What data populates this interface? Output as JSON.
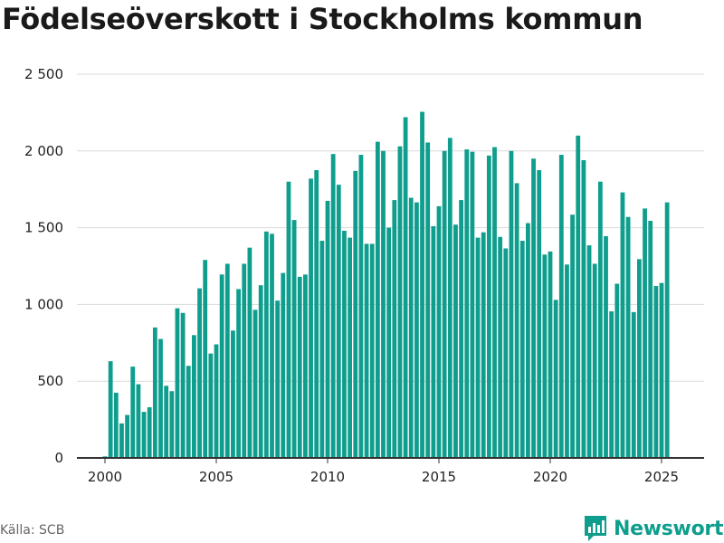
{
  "chart_data": {
    "type": "bar",
    "title": "Födelseöverskott i Stockholms kommun",
    "xlabel": "",
    "ylabel": "",
    "ylim": [
      0,
      2500
    ],
    "yticks": [
      "2 500",
      "2 000",
      "1 500",
      "1 000",
      "500",
      "0"
    ],
    "ytick_values": [
      2500,
      2000,
      1500,
      1000,
      500,
      0
    ],
    "xticks": [
      "2000",
      "2005",
      "2010",
      "2015",
      "2020",
      "2025"
    ],
    "xtick_values": [
      2000,
      2005,
      2010,
      2015,
      2020,
      2025
    ],
    "grid": true,
    "color": "#0f9e8d",
    "x_start": "2000-Q1",
    "frequency": "quarterly",
    "values": [
      10,
      630,
      425,
      225,
      280,
      595,
      480,
      300,
      330,
      850,
      775,
      470,
      435,
      975,
      945,
      600,
      800,
      1105,
      1290,
      680,
      740,
      1195,
      1265,
      830,
      1100,
      1265,
      1370,
      965,
      1125,
      1475,
      1460,
      1025,
      1205,
      1800,
      1550,
      1180,
      1195,
      1820,
      1875,
      1415,
      1675,
      1980,
      1780,
      1480,
      1435,
      1870,
      1975,
      1395,
      1395,
      2060,
      2000,
      1500,
      1680,
      2030,
      2220,
      1695,
      1665,
      2255,
      2055,
      1510,
      1640,
      2000,
      2085,
      1520,
      1680,
      2010,
      1995,
      1435,
      1470,
      1970,
      2025,
      1440,
      1365,
      2000,
      1790,
      1415,
      1530,
      1950,
      1875,
      1325,
      1345,
      1030,
      1975,
      1260,
      1585,
      2100,
      1940,
      1385,
      1265,
      1800,
      1445,
      955,
      1135,
      1730,
      1570,
      950,
      1295,
      1625,
      1545,
      1120,
      1140,
      1665
    ]
  },
  "source": "Källa: SCB",
  "brand": {
    "name": "Newsworthy",
    "icon": "newsworthy-logo-icon"
  }
}
